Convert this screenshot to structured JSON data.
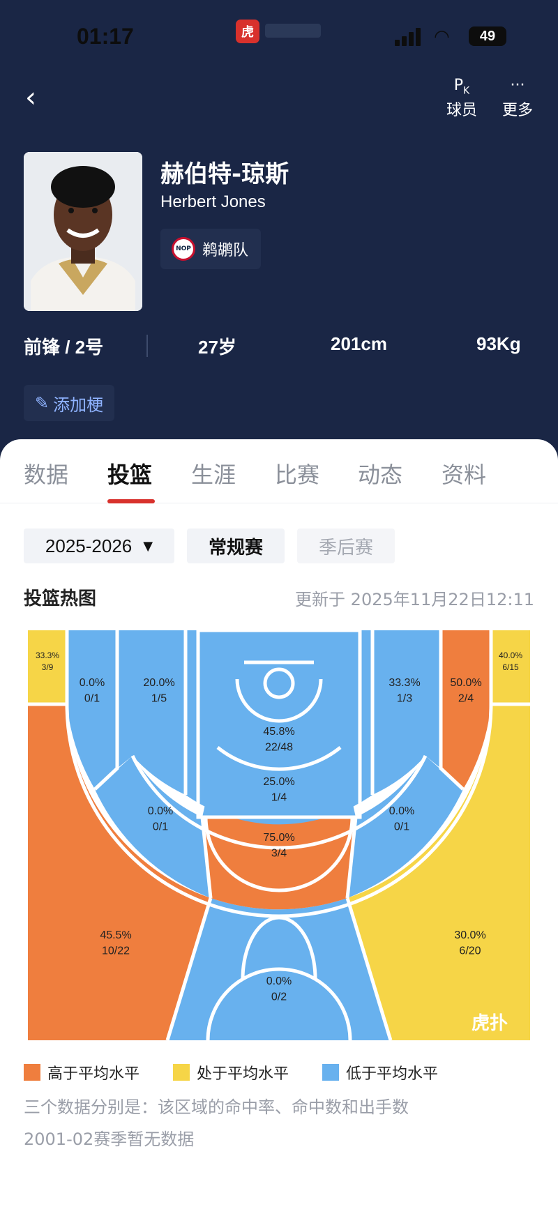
{
  "status_bar": {
    "time": "01:17",
    "battery": "49"
  },
  "top_actions": {
    "pk_label": "球员",
    "more_label": "更多"
  },
  "player": {
    "name_cn": "赫伯特-琼斯",
    "name_en": "Herbert Jones",
    "team": "鹈鹕队",
    "team_logo_text": "NOP",
    "position_number": "前锋 / 2号",
    "age": "27岁",
    "height": "201cm",
    "weight": "93Kg",
    "add_meme_label": "添加梗"
  },
  "tabs": [
    {
      "label": "数据"
    },
    {
      "label": "投篮"
    },
    {
      "label": "生涯"
    },
    {
      "label": "比赛"
    },
    {
      "label": "动态"
    },
    {
      "label": "资料"
    }
  ],
  "active_tab": "投篮",
  "filters": {
    "season": "2025-2026",
    "regular": "常规赛",
    "playoffs": "季后赛"
  },
  "heatmap": {
    "title": "投篮热图",
    "updated": "更新于 2025年11月22日12:11",
    "colors": {
      "above": "#ef7e3e",
      "average": "#f6d547",
      "below": "#68b1ee"
    },
    "zones": {
      "left_corner_three": {
        "pct": "33.3%",
        "made_att": "3/9",
        "level": "average"
      },
      "right_corner_three": {
        "pct": "40.0%",
        "made_att": "6/15",
        "level": "average"
      },
      "left_baseline_long": {
        "pct": "0.0%",
        "made_att": "0/1",
        "level": "below"
      },
      "left_baseline_mid": {
        "pct": "20.0%",
        "made_att": "1/5",
        "level": "below"
      },
      "paint_restricted": {
        "pct": "45.8%",
        "made_att": "22/48",
        "level": "below"
      },
      "right_baseline_mid": {
        "pct": "33.3%",
        "made_att": "1/3",
        "level": "below"
      },
      "right_baseline_long": {
        "pct": "50.0%",
        "made_att": "2/4",
        "level": "above"
      },
      "paint_free_throw": {
        "pct": "25.0%",
        "made_att": "1/4",
        "level": "below"
      },
      "left_wing_mid": {
        "pct": "0.0%",
        "made_att": "0/1",
        "level": "below"
      },
      "right_wing_mid": {
        "pct": "0.0%",
        "made_att": "0/1",
        "level": "below"
      },
      "top_key_mid": {
        "pct": "75.0%",
        "made_att": "3/4",
        "level": "above"
      },
      "left_wing_three": {
        "pct": "45.5%",
        "made_att": "10/22",
        "level": "above"
      },
      "right_wing_three": {
        "pct": "30.0%",
        "made_att": "6/20",
        "level": "average"
      },
      "top_key_three": {
        "pct": "0.0%",
        "made_att": "0/2",
        "level": "below"
      }
    },
    "legend": {
      "above": "高于平均水平",
      "average": "处于平均水平",
      "below": "低于平均水平"
    },
    "notes": [
      "三个数据分别是：该区域的命中率、命中数和出手数",
      "2001-02赛季暂无数据"
    ],
    "watermark": "虎扑"
  }
}
